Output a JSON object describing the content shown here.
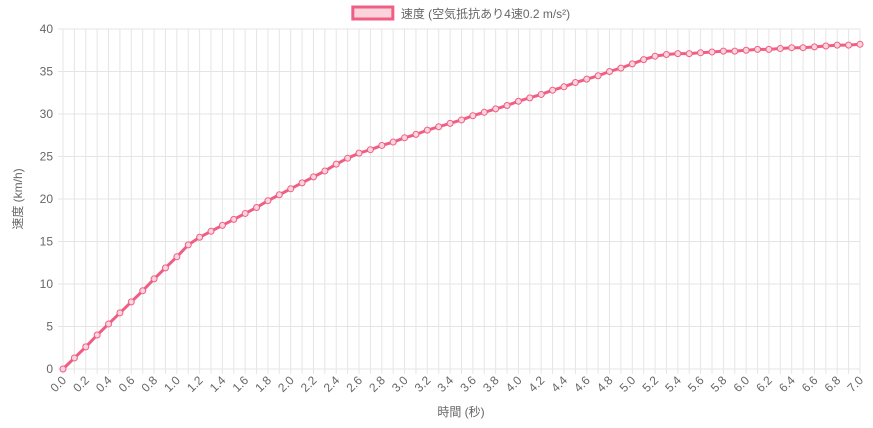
{
  "chart_data": {
    "type": "line",
    "x_label": "時間 (秒)",
    "y_label": "速度 (km/h)",
    "categories": [
      "0.0",
      null,
      "0.2",
      null,
      "0.4",
      null,
      "0.6",
      null,
      "0.8",
      null,
      "1.0",
      null,
      "1.2",
      null,
      "1.4",
      null,
      "1.6",
      null,
      "1.8",
      null,
      "2.0",
      null,
      "2.2",
      null,
      "2.4",
      null,
      "2.6",
      null,
      "2.8",
      null,
      "3.0",
      null,
      "3.2",
      null,
      "3.4",
      null,
      "3.6",
      null,
      "3.8",
      null,
      "4.0",
      null,
      "4.2",
      null,
      "4.4",
      null,
      "4.6",
      null,
      "4.8",
      null,
      "5.0",
      null,
      "5.2",
      null,
      "5.4",
      null,
      "5.6",
      null,
      "5.8",
      null,
      "6.0",
      null,
      "6.2",
      null,
      "6.4",
      null,
      "6.6",
      null,
      "6.8",
      null,
      "7.0"
    ],
    "series": [
      {
        "name": "速度 (空気抵抗あり4速0.2 m/s²)",
        "color": "#ef5f84",
        "fill": "#fbd3dd",
        "values": [
          0,
          1.3,
          2.6,
          4.0,
          5.3,
          6.6,
          7.9,
          9.2,
          10.6,
          11.9,
          13.2,
          14.6,
          15.5,
          16.2,
          16.9,
          17.6,
          18.3,
          19.0,
          19.8,
          20.5,
          21.2,
          21.9,
          22.6,
          23.3,
          24.1,
          24.8,
          25.4,
          25.8,
          26.3,
          26.7,
          27.2,
          27.6,
          28.1,
          28.5,
          28.9,
          29.3,
          29.8,
          30.2,
          30.6,
          31.0,
          31.5,
          31.9,
          32.3,
          32.8,
          33.2,
          33.7,
          34.1,
          34.5,
          35.0,
          35.4,
          35.9,
          36.4,
          36.8,
          37.0,
          37.1,
          37.1,
          37.2,
          37.3,
          37.4,
          37.4,
          37.5,
          37.6,
          37.6,
          37.7,
          37.8,
          37.8,
          37.9,
          38.0,
          38.1,
          38.1,
          38.2
        ]
      }
    ],
    "ylim": [
      0,
      40
    ],
    "yticks": [
      0,
      5,
      10,
      15,
      20,
      25,
      30,
      35,
      40
    ],
    "grid": true,
    "legend": "top"
  }
}
